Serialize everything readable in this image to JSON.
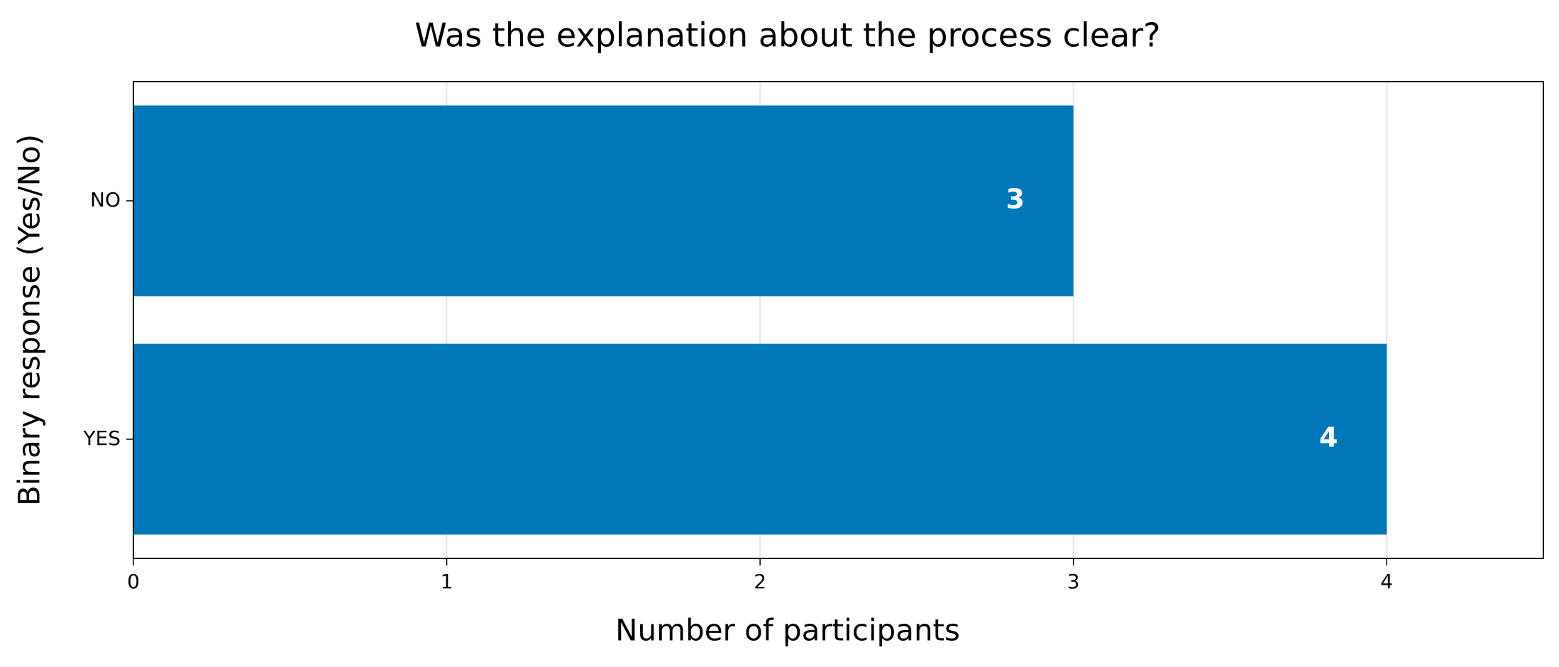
{
  "chart_data": {
    "type": "barh",
    "title": "Was the explanation about the process clear?",
    "x_label": "Number of participants",
    "y_label": "Binary response (Yes/No)",
    "categories": [
      "YES",
      "NO"
    ],
    "values": [
      4,
      3
    ],
    "color": "#0077b6",
    "xlim": [
      0,
      4.5
    ],
    "xticks": [
      0,
      1,
      2,
      3,
      4
    ],
    "grid": true
  }
}
